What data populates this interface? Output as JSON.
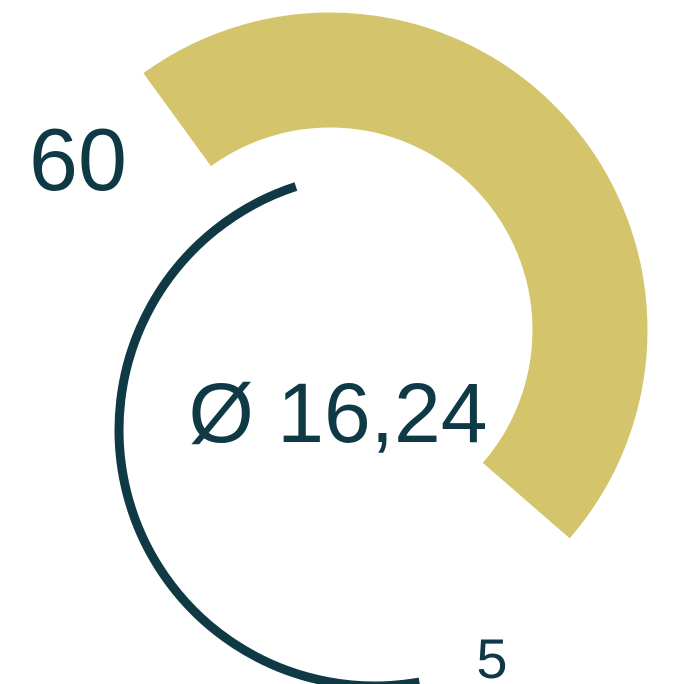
{
  "chart_data": {
    "type": "gauge",
    "max_label": "60",
    "min_label": "5",
    "center_label": "Ø 16,24",
    "max": 60,
    "min": 5,
    "average": 16.24,
    "grid": false,
    "legend": "none"
  },
  "colors": {
    "max_arc": "#d4c46b",
    "min_arc": "#0f3a45",
    "text": "#0f3a45",
    "background": "#ffffff"
  }
}
